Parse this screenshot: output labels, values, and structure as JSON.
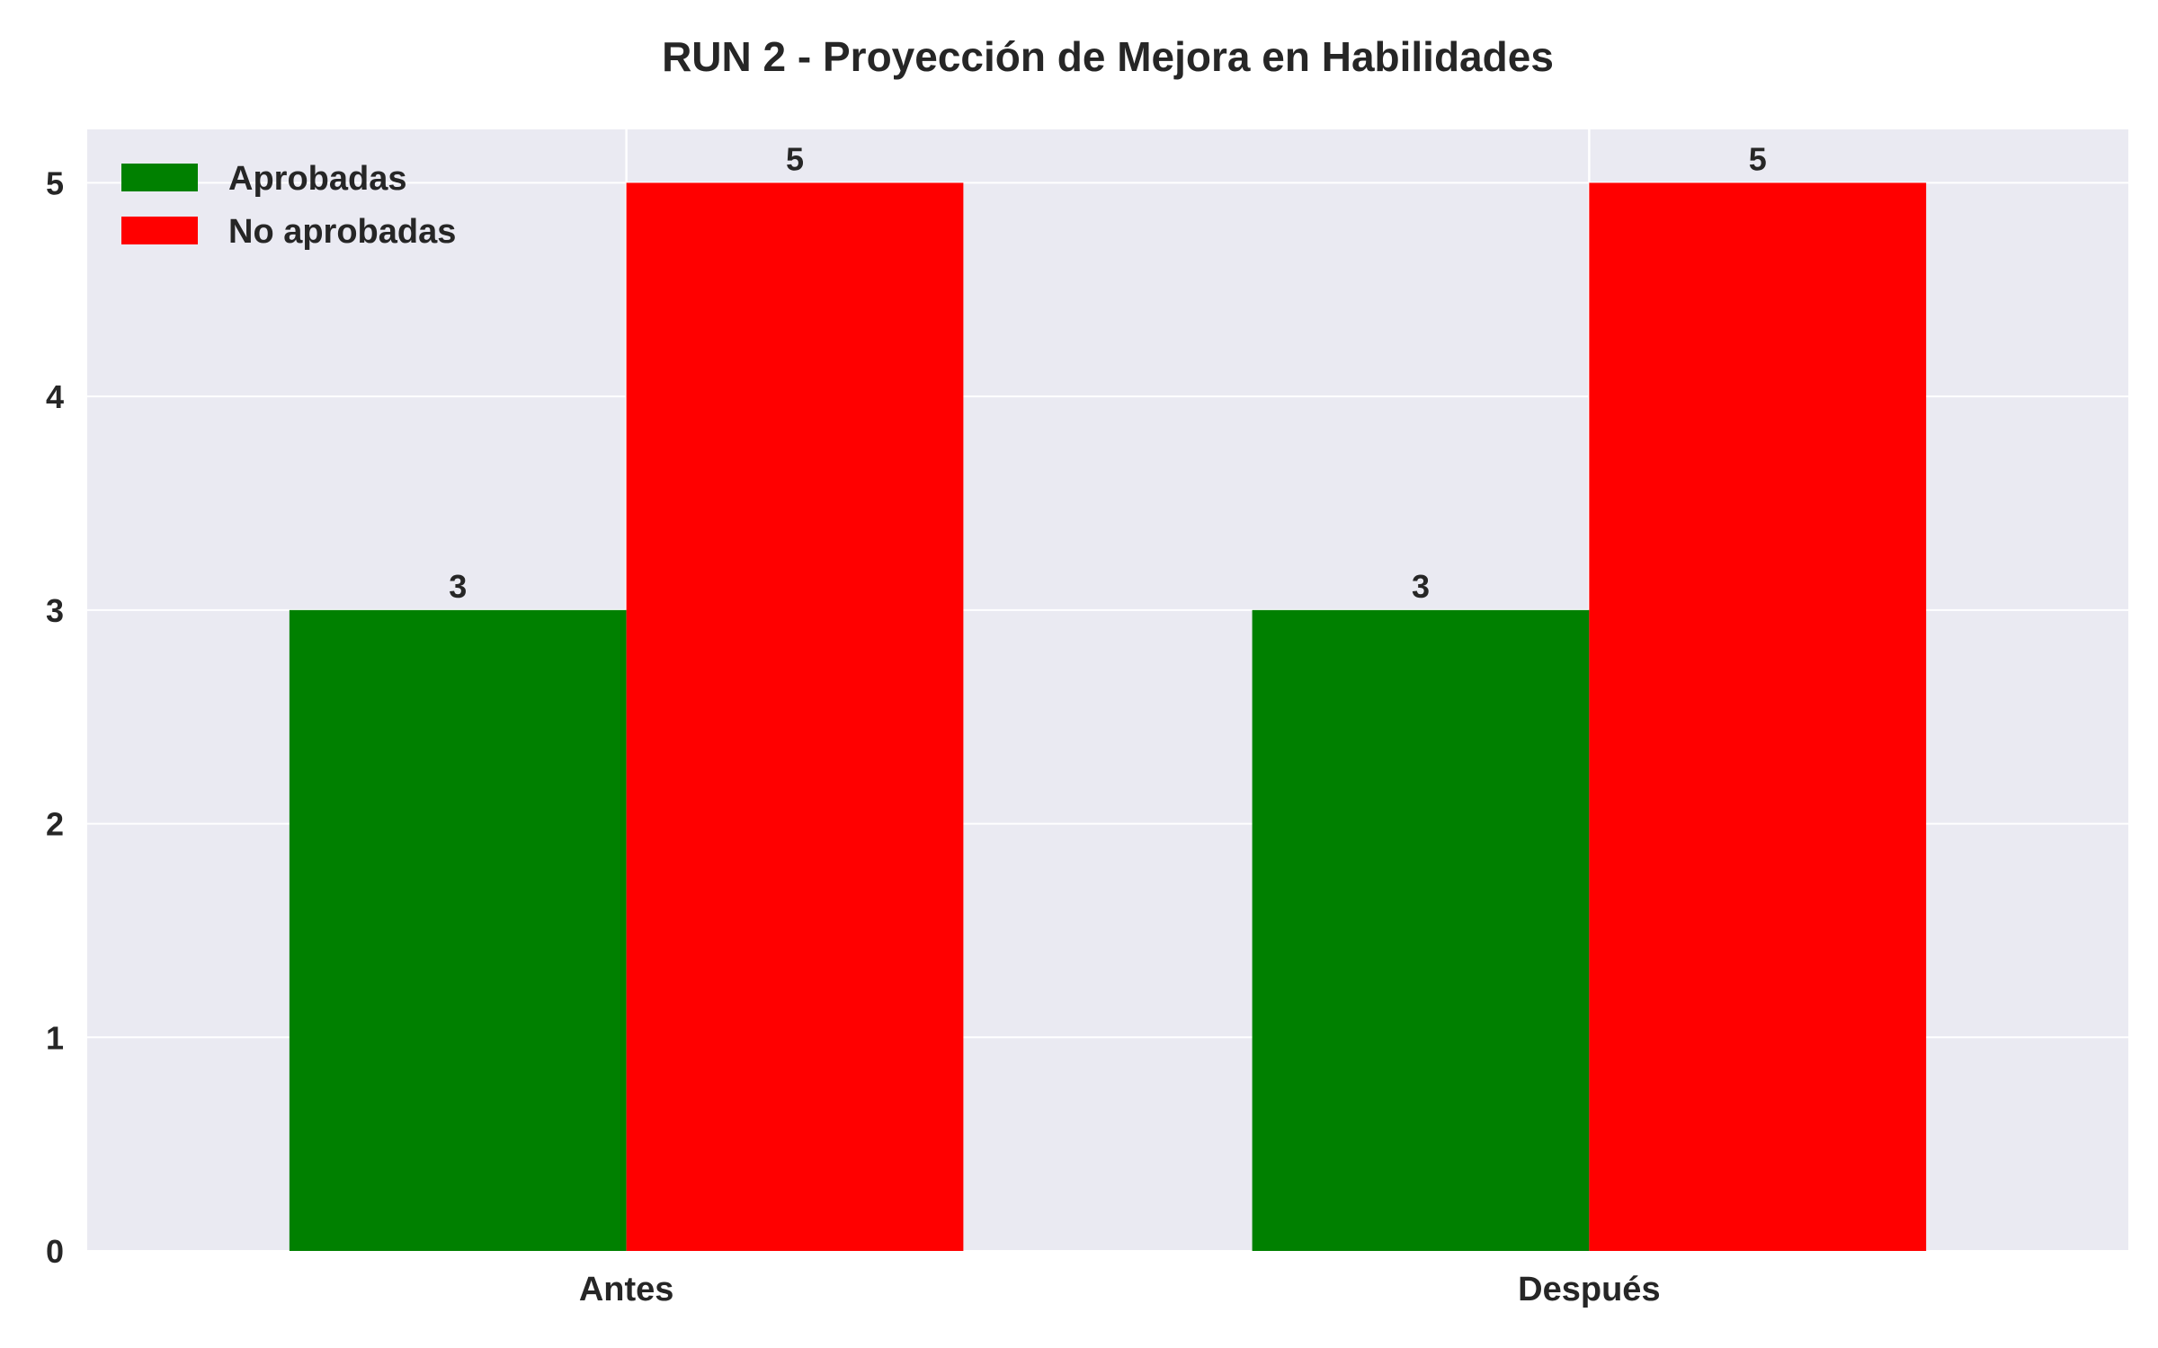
{
  "chart_data": {
    "type": "bar",
    "title": "RUN 2 - Proyección de Mejora en Habilidades",
    "xlabel": "",
    "ylabel": "",
    "categories": [
      "Antes",
      "Después"
    ],
    "series": [
      {
        "name": "Aprobadas",
        "values": [
          3,
          3
        ],
        "color": "#008000"
      },
      {
        "name": "No aprobadas",
        "values": [
          5,
          5
        ],
        "color": "#ff0000"
      }
    ],
    "ylim": [
      0,
      5.25
    ],
    "yticks": [
      "0",
      "1",
      "2",
      "3",
      "4",
      "5"
    ],
    "data_labels": true,
    "grid": true,
    "legend_position": "upper-left",
    "background_color": "#eaeaf2",
    "grid_color": "#ffffff"
  }
}
